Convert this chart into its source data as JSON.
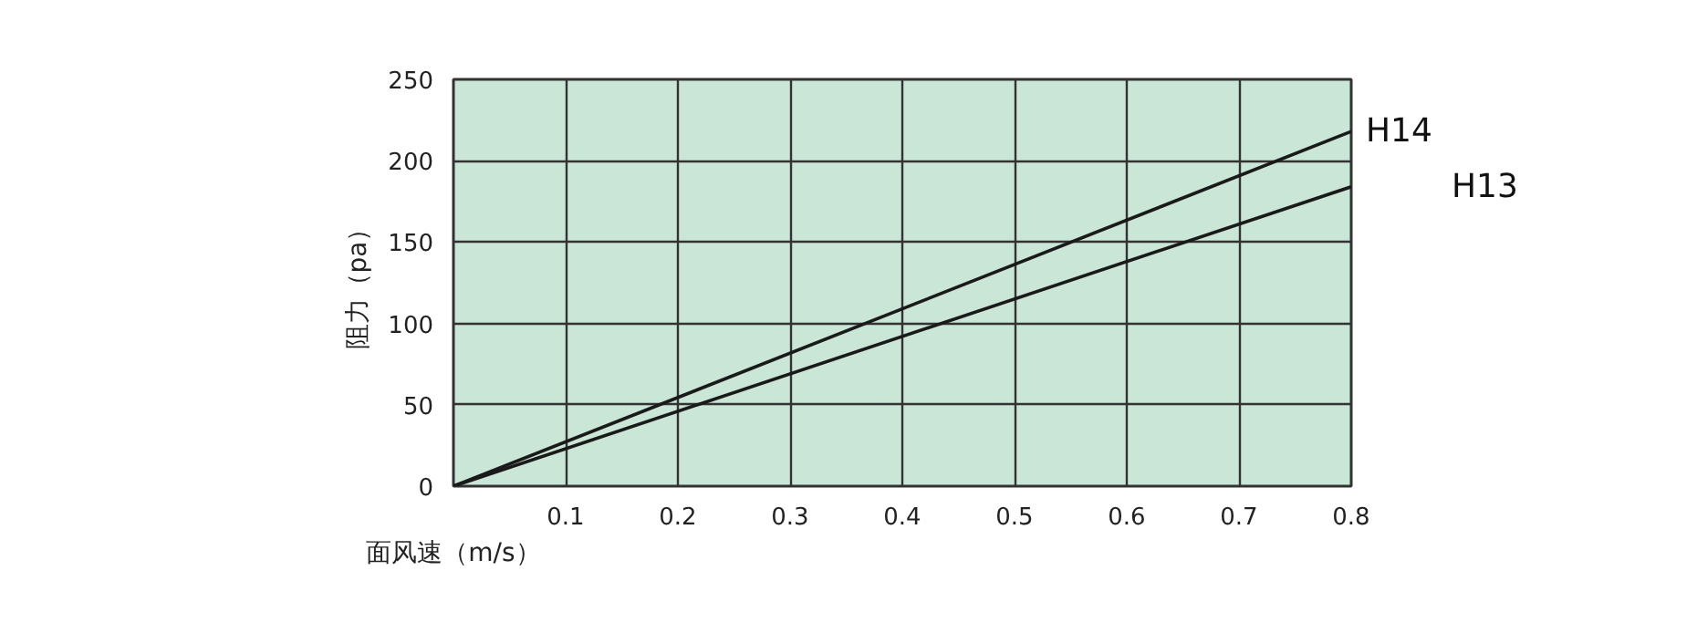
{
  "chart_data": {
    "type": "line",
    "xlabel": "面风速（m/s）",
    "ylabel": "阻力（pa）",
    "x": [
      0,
      0.8
    ],
    "series": [
      {
        "name": "H14",
        "color": "#1a1a1a",
        "values": [
          0,
          218
        ]
      },
      {
        "name": "H13",
        "color": "#1a1a1a",
        "values": [
          0,
          184
        ]
      }
    ],
    "xlim": [
      0,
      0.8
    ],
    "ylim": [
      0,
      250
    ],
    "xticks": [
      0.1,
      0.2,
      0.3,
      0.4,
      0.5,
      0.6,
      0.7,
      0.8
    ],
    "yticks": [
      0,
      50,
      100,
      150,
      200,
      250
    ],
    "grid": true,
    "legend": false,
    "marker": "none",
    "line_style": "solid"
  }
}
